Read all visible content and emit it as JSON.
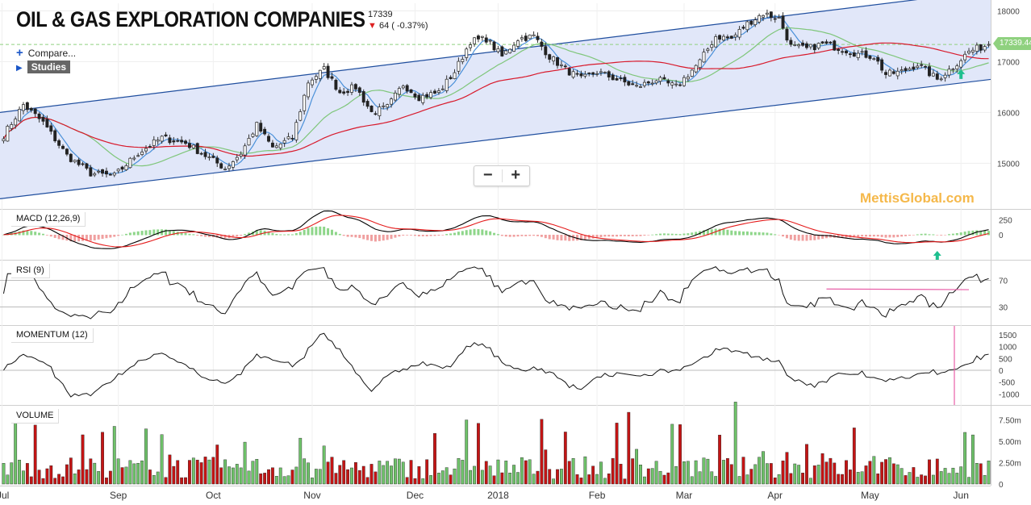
{
  "header": {
    "title": "OIL & GAS EXPLORATION COMPANIES",
    "price": "17339",
    "change": "64 ( -0.37%)",
    "compare_label": "Compare...",
    "studies_label": "Studies",
    "zoom_out": "−",
    "zoom_in": "+",
    "last_price_tag": "17339.44",
    "watermark": "MettisGlobal.com"
  },
  "colors": {
    "up": "#6fc36a",
    "down": "#c41414",
    "channel_fill": "#dfe6f9",
    "channel_line": "#1f4e9e",
    "ma_fast": "#4a90d9",
    "ma_mid": "#7fc67a",
    "ma_slow": "#d81a2c",
    "macd_line": "#000000",
    "signal_line": "#e41a1a",
    "rsi_trend": "#e85fa8",
    "signal_arrow": "#1fbf8f"
  },
  "chart_data": {
    "type": "candlestick",
    "x_labels": [
      "Jul",
      "Sep",
      "Oct",
      "Nov",
      "Dec",
      "2018",
      "Feb",
      "Mar",
      "Apr",
      "May",
      "Jun"
    ],
    "price": {
      "y_ticks": [
        15000,
        16000,
        17000,
        18000
      ],
      "ylim": [
        14100,
        18150
      ],
      "last": 17339.44,
      "control": [
        [
          0,
          15550
        ],
        [
          5,
          16150
        ],
        [
          10,
          15800
        ],
        [
          16,
          15150
        ],
        [
          22,
          14800
        ],
        [
          28,
          14750
        ],
        [
          34,
          15200
        ],
        [
          40,
          15500
        ],
        [
          46,
          15400
        ],
        [
          52,
          15100
        ],
        [
          56,
          14900
        ],
        [
          60,
          15200
        ],
        [
          64,
          15750
        ],
        [
          68,
          15300
        ],
        [
          73,
          15500
        ],
        [
          77,
          16600
        ],
        [
          81,
          16850
        ],
        [
          85,
          16400
        ],
        [
          89,
          16500
        ],
        [
          93,
          16000
        ],
        [
          97,
          16100
        ],
        [
          101,
          16550
        ],
        [
          105,
          16300
        ],
        [
          110,
          16400
        ],
        [
          114,
          16800
        ],
        [
          118,
          17400
        ],
        [
          122,
          17450
        ],
        [
          126,
          17100
        ],
        [
          130,
          17450
        ],
        [
          134,
          17500
        ],
        [
          138,
          17100
        ],
        [
          142,
          16850
        ],
        [
          146,
          16650
        ],
        [
          150,
          16800
        ],
        [
          155,
          16650
        ],
        [
          160,
          16500
        ],
        [
          165,
          16650
        ],
        [
          170,
          16500
        ],
        [
          176,
          17000
        ],
        [
          180,
          17500
        ],
        [
          184,
          17450
        ],
        [
          188,
          17750
        ],
        [
          192,
          17950
        ],
        [
          196,
          17850
        ],
        [
          199,
          17300
        ],
        [
          203,
          17250
        ],
        [
          207,
          17350
        ],
        [
          212,
          17250
        ],
        [
          216,
          17150
        ],
        [
          220,
          17100
        ],
        [
          223,
          16750
        ],
        [
          227,
          16800
        ],
        [
          231,
          16950
        ],
        [
          236,
          16650
        ],
        [
          240,
          16900
        ],
        [
          244,
          17200
        ],
        [
          249,
          17339
        ]
      ],
      "ma_windows": [
        5,
        20,
        50
      ],
      "channel": {
        "upper_start": 16000,
        "upper_end": 18400,
        "lower_start": 14300,
        "lower_end": 16650
      }
    },
    "macd": {
      "label": "MACD (12,26,9)",
      "y_ticks": [
        250,
        0
      ]
    },
    "rsi": {
      "label": "RSI (9)",
      "y_ticks": [
        70,
        30
      ]
    },
    "momentum": {
      "label": "MOMENTUM (12)",
      "y_ticks": [
        1500,
        1000,
        500,
        0,
        -500,
        -1000
      ]
    },
    "volume": {
      "label": "VOLUME",
      "y_ticks": [
        "7.50m",
        "5.00m",
        "2.50m",
        "0"
      ]
    }
  }
}
